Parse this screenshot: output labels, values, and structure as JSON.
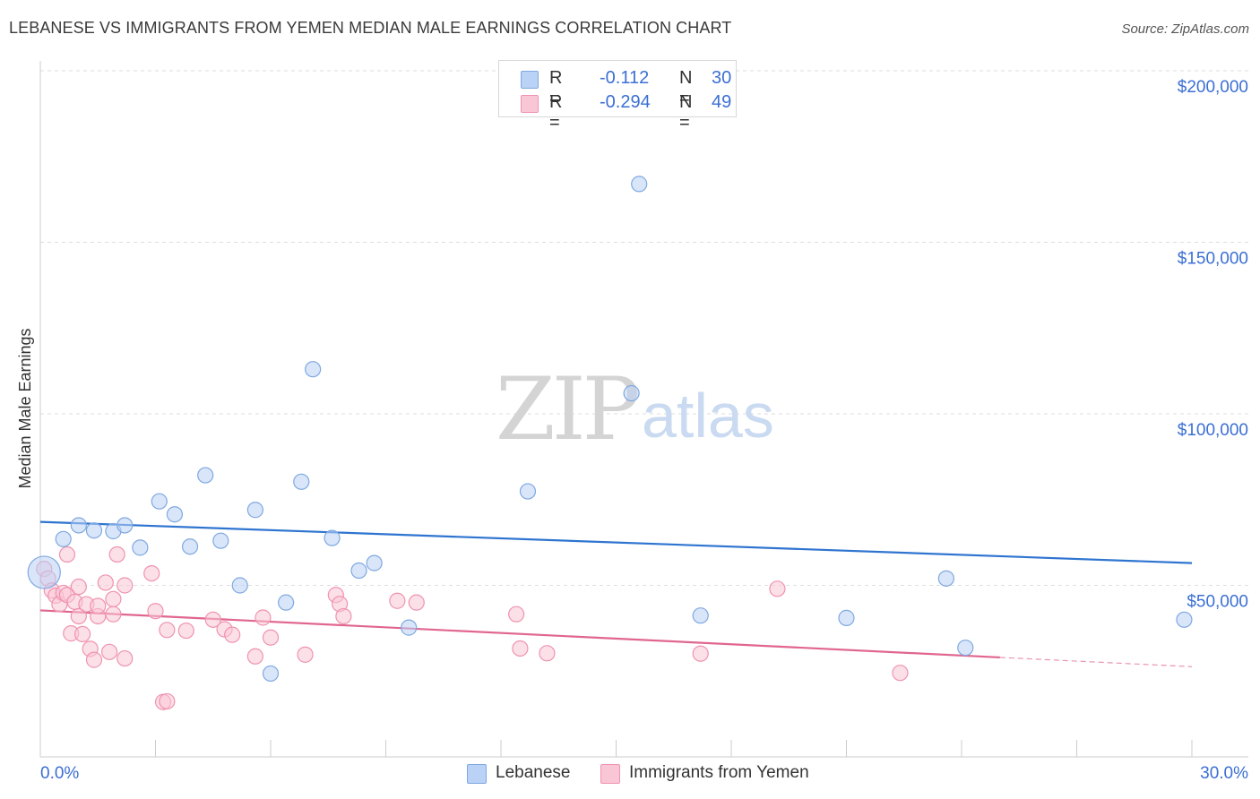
{
  "header": {
    "title": "LEBANESE VS IMMIGRANTS FROM YEMEN MEDIAN MALE EARNINGS CORRELATION CHART",
    "source": "Source: ZipAtlas.com"
  },
  "watermark": {
    "zip": "ZIP",
    "atlas": "atlas"
  },
  "legend_top": {
    "rows": [
      {
        "r_label": "R =",
        "r_value": "-0.112",
        "n_label": "N =",
        "n_value": "30"
      },
      {
        "r_label": "R =",
        "r_value": "-0.294",
        "n_label": "N =",
        "n_value": "49"
      }
    ]
  },
  "legend_bottom": {
    "items": [
      "Lebanese",
      "Immigrants from Yemen"
    ]
  },
  "chart_data": {
    "type": "scatter",
    "title": "LEBANESE VS IMMIGRANTS FROM YEMEN MEDIAN MALE EARNINGS CORRELATION CHART",
    "ylabel": "Median Male Earnings",
    "xlabel": "",
    "xlim": [
      0,
      30
    ],
    "ylim": [
      0,
      200000
    ],
    "x_tick_labels": [
      "0.0%",
      "30.0%"
    ],
    "y_tick_labels": [
      "$50,000",
      "$100,000",
      "$150,000",
      "$200,000"
    ],
    "y_ticks": [
      50000,
      100000,
      150000,
      200000
    ],
    "grid": true,
    "legend_position": "top-center",
    "colors": {
      "lebanese_fill": "#b9d2f5",
      "lebanese_stroke": "#7fa8e0",
      "lebanese_line": "#2e74d0",
      "yemen_fill": "#f9c6d6",
      "yemen_stroke": "#ef93b0",
      "yemen_line": "#e0668f",
      "tick_text": "#3b6fd4"
    },
    "series": [
      {
        "name": "Lebanese",
        "r": -0.112,
        "n": 30,
        "trend": {
          "x": [
            0,
            30
          ],
          "y": [
            68500,
            56500
          ]
        },
        "points": [
          {
            "x": 0.1,
            "y": 53800,
            "large": true
          },
          {
            "x": 0.6,
            "y": 63500
          },
          {
            "x": 1.0,
            "y": 67500
          },
          {
            "x": 1.4,
            "y": 66000
          },
          {
            "x": 1.9,
            "y": 65800
          },
          {
            "x": 2.2,
            "y": 67500
          },
          {
            "x": 2.6,
            "y": 61000
          },
          {
            "x": 3.1,
            "y": 74500
          },
          {
            "x": 3.5,
            "y": 70700
          },
          {
            "x": 3.9,
            "y": 61300
          },
          {
            "x": 4.3,
            "y": 82100
          },
          {
            "x": 4.7,
            "y": 63000
          },
          {
            "x": 5.2,
            "y": 50000
          },
          {
            "x": 5.6,
            "y": 72000
          },
          {
            "x": 6.0,
            "y": 24300
          },
          {
            "x": 6.4,
            "y": 45000
          },
          {
            "x": 6.8,
            "y": 80200
          },
          {
            "x": 7.1,
            "y": 113000
          },
          {
            "x": 7.6,
            "y": 63800
          },
          {
            "x": 8.3,
            "y": 54300
          },
          {
            "x": 8.7,
            "y": 56500
          },
          {
            "x": 9.6,
            "y": 37700
          },
          {
            "x": 12.7,
            "y": 77400
          },
          {
            "x": 15.4,
            "y": 106000
          },
          {
            "x": 15.6,
            "y": 167000
          },
          {
            "x": 17.2,
            "y": 41200
          },
          {
            "x": 21.0,
            "y": 40500
          },
          {
            "x": 23.6,
            "y": 52000
          },
          {
            "x": 24.1,
            "y": 31800
          },
          {
            "x": 29.8,
            "y": 40000
          }
        ]
      },
      {
        "name": "Immigrants from Yemen",
        "r": -0.294,
        "n": 49,
        "trend": {
          "x": [
            0,
            25
          ],
          "y": [
            42700,
            29000
          ]
        },
        "trend_dashed": {
          "x": [
            25,
            30
          ],
          "y": [
            29000,
            26300
          ]
        },
        "points": [
          {
            "x": 0.1,
            "y": 54800
          },
          {
            "x": 0.2,
            "y": 52000
          },
          {
            "x": 0.3,
            "y": 48500
          },
          {
            "x": 0.4,
            "y": 47000
          },
          {
            "x": 0.5,
            "y": 44500
          },
          {
            "x": 0.6,
            "y": 47800
          },
          {
            "x": 0.7,
            "y": 47200
          },
          {
            "x": 0.7,
            "y": 59000
          },
          {
            "x": 0.8,
            "y": 36000
          },
          {
            "x": 0.9,
            "y": 45200
          },
          {
            "x": 1.0,
            "y": 49600
          },
          {
            "x": 1.0,
            "y": 41000
          },
          {
            "x": 1.1,
            "y": 35800
          },
          {
            "x": 1.2,
            "y": 44500
          },
          {
            "x": 1.3,
            "y": 31500
          },
          {
            "x": 1.4,
            "y": 28300
          },
          {
            "x": 1.5,
            "y": 41000
          },
          {
            "x": 1.5,
            "y": 44000
          },
          {
            "x": 1.7,
            "y": 50800
          },
          {
            "x": 1.8,
            "y": 30600
          },
          {
            "x": 1.9,
            "y": 41600
          },
          {
            "x": 1.9,
            "y": 46000
          },
          {
            "x": 2.0,
            "y": 59000
          },
          {
            "x": 2.2,
            "y": 28700
          },
          {
            "x": 2.2,
            "y": 50000
          },
          {
            "x": 2.9,
            "y": 53500
          },
          {
            "x": 3.0,
            "y": 42500
          },
          {
            "x": 3.2,
            "y": 16000
          },
          {
            "x": 3.3,
            "y": 16200
          },
          {
            "x": 3.3,
            "y": 37000
          },
          {
            "x": 3.8,
            "y": 36800
          },
          {
            "x": 4.5,
            "y": 40000
          },
          {
            "x": 4.8,
            "y": 37200
          },
          {
            "x": 5.0,
            "y": 35600
          },
          {
            "x": 5.6,
            "y": 29300
          },
          {
            "x": 5.8,
            "y": 40600
          },
          {
            "x": 6.0,
            "y": 34800
          },
          {
            "x": 6.9,
            "y": 29800
          },
          {
            "x": 7.7,
            "y": 47200
          },
          {
            "x": 7.8,
            "y": 44600
          },
          {
            "x": 7.9,
            "y": 41000
          },
          {
            "x": 9.3,
            "y": 45500
          },
          {
            "x": 9.8,
            "y": 45000
          },
          {
            "x": 12.4,
            "y": 41600
          },
          {
            "x": 12.5,
            "y": 31600
          },
          {
            "x": 13.2,
            "y": 30200
          },
          {
            "x": 17.2,
            "y": 30100
          },
          {
            "x": 19.2,
            "y": 49000
          },
          {
            "x": 22.4,
            "y": 24500
          }
        ]
      }
    ]
  }
}
